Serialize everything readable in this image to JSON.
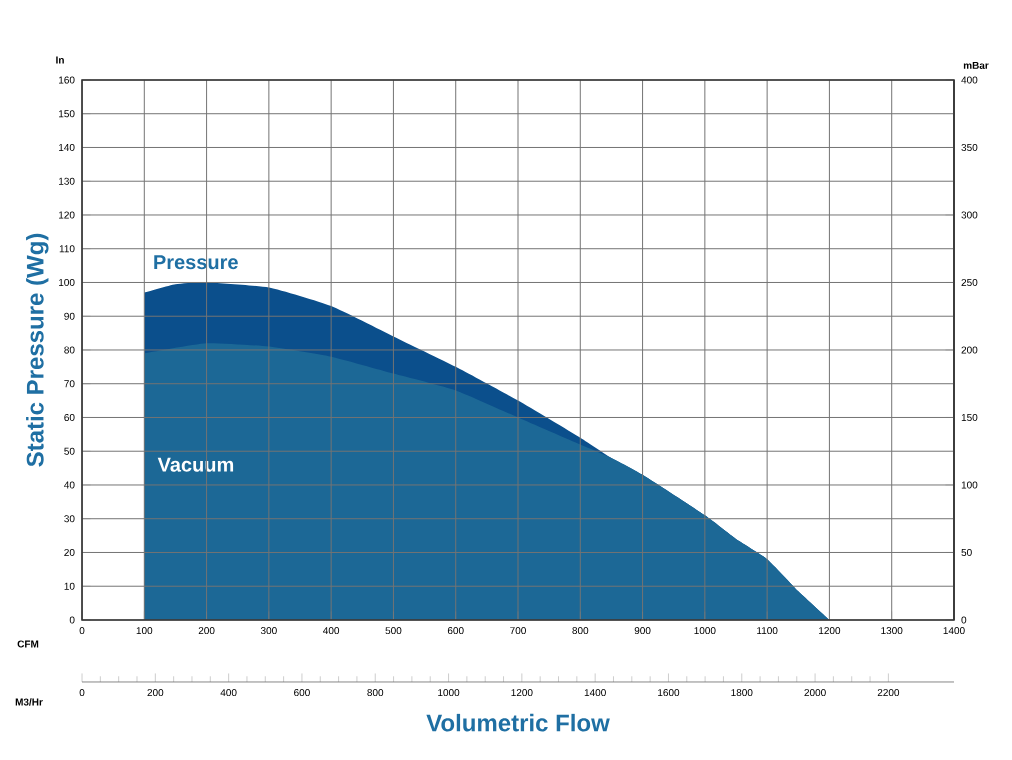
{
  "chart_data": {
    "type": "area",
    "xlabel": "Volumetric Flow",
    "ylabel": "Static Pressure (Wg)",
    "y2label": "mBar",
    "x2label": "M3/Hr",
    "annotations": [
      "In",
      "CFM"
    ],
    "series": [
      {
        "name": "Pressure",
        "color": "#0b4f8c",
        "x": [
          100,
          150,
          200,
          300,
          400,
          500,
          600,
          700,
          800,
          850,
          900,
          1000,
          1050,
          1100,
          1150,
          1200
        ],
        "values": [
          97,
          99.5,
          100,
          98.5,
          93,
          84,
          75,
          65,
          54,
          48,
          43,
          31,
          24,
          18,
          8.5,
          0
        ]
      },
      {
        "name": "Vacuum",
        "color": "#1c6896",
        "x": [
          100,
          200,
          300,
          400,
          500,
          600,
          700,
          800,
          850,
          900,
          1000,
          1050,
          1100,
          1150,
          1200
        ],
        "values": [
          79,
          82,
          81,
          78,
          73,
          68,
          60,
          52,
          48,
          43,
          31,
          24,
          18,
          8.5,
          0
        ]
      }
    ],
    "xlim": [
      0,
      1400
    ],
    "xticks": [
      0,
      100,
      200,
      300,
      400,
      500,
      600,
      700,
      800,
      900,
      1000,
      1100,
      1200,
      1300,
      1400
    ],
    "ylim": [
      0,
      160
    ],
    "yticks": [
      0,
      10,
      20,
      30,
      40,
      50,
      60,
      70,
      80,
      90,
      100,
      110,
      120,
      130,
      140,
      150,
      160
    ],
    "y2lim": [
      0,
      400
    ],
    "y2ticks": [
      0,
      50,
      100,
      150,
      200,
      250,
      300,
      350,
      400
    ],
    "x2lim": [
      0,
      2379
    ],
    "x2ticks": [
      0,
      200,
      400,
      600,
      800,
      1000,
      1200,
      1400,
      1600,
      1800,
      2000,
      2200
    ],
    "grid": true
  }
}
